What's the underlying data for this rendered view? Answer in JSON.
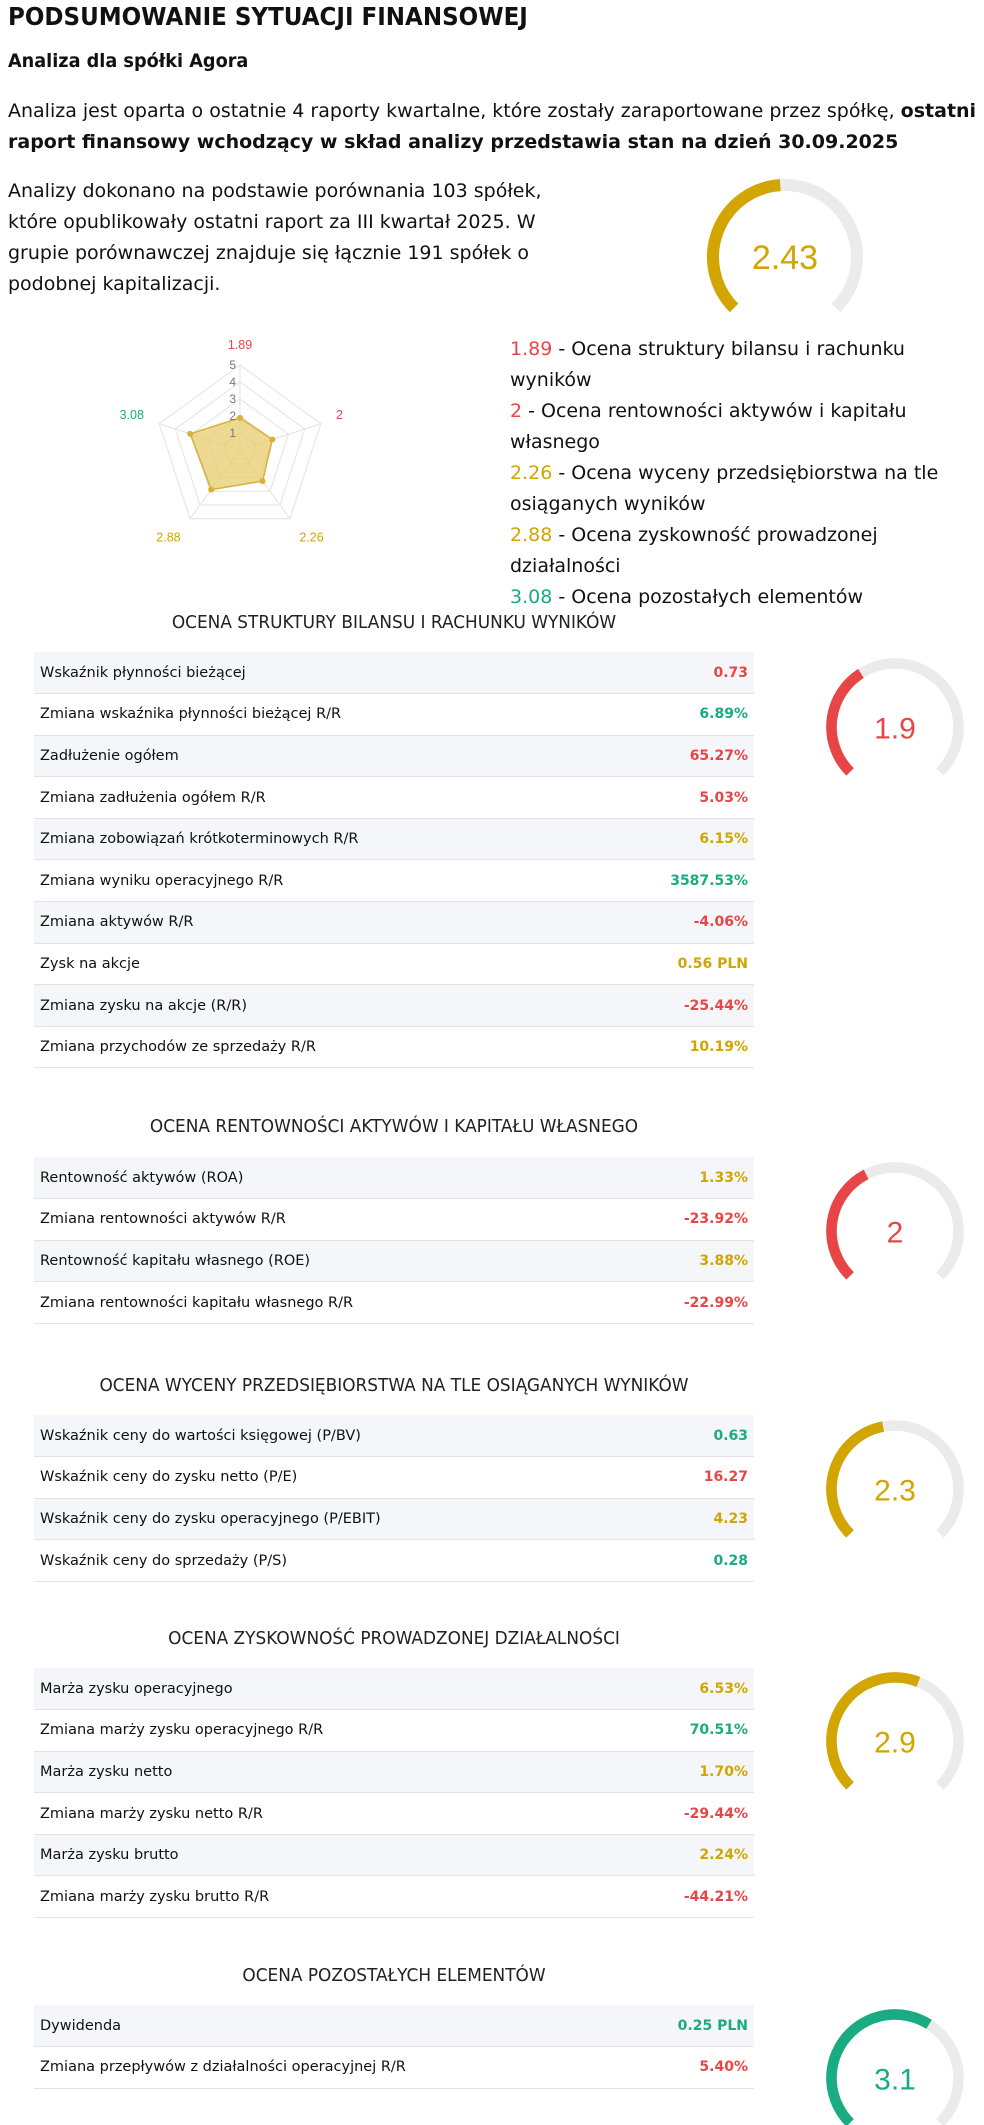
{
  "header": {
    "title": "PODSUMOWANIE SYTUACJI FINANSOWEJ",
    "subtitle": "Analiza dla spółki Agora",
    "intro_text": "Analiza jest oparta o ostatnie 4 raporty kwartalne, które zostały zaraportowane przez spółkę, ",
    "intro_bold": "ostatni raport finansowy wchodzący w skład analizy przedstawia stan na dzień 30.09.2025",
    "description": "Analizy dokonano na podstawie porównania 103 spółek, które opublikowały ostatni raport za III kwartał 2025. W grupie porównawczej znajduje się łącznie 191 spółek o podobnej kapitalizacji."
  },
  "overall": {
    "score": "2.43",
    "value": 2.43,
    "max": 5,
    "color": "#d2a500"
  },
  "colors": {
    "red": "#e84646",
    "green": "#1aab83",
    "gold": "#d2a500",
    "track": "#ebebeb"
  },
  "chart_data": {
    "type": "radar",
    "axes": [
      "Ocena struktury bilansu i rachunku wyników",
      "Ocena rentowności aktywów i kapitału własnego",
      "Ocena wyceny przedsiębiorstwa na tle osiąganych wyników",
      "Ocena zyskowność prowadzonej działalności",
      "Ocena pozostałych elementów"
    ],
    "values": [
      1.89,
      2,
      2.26,
      2.88,
      3.08
    ],
    "value_labels": [
      "1.89",
      "2",
      "2.26",
      "2.88",
      "3.08"
    ],
    "label_colors": [
      "#e84646",
      "#e84646",
      "#d2a500",
      "#d2a500",
      "#1aab83"
    ],
    "ticks": [
      "1",
      "2",
      "3",
      "4",
      "5"
    ],
    "rmax": 5,
    "fill": "#e8cc6e",
    "stroke": "#d9b13a"
  },
  "legend": [
    {
      "value": "1.89",
      "label": " - Ocena struktury bilansu i rachunku wyników",
      "color": "#e84646"
    },
    {
      "value": "2",
      "label": " - Ocena rentowności aktywów i kapitału własnego",
      "color": "#e84646"
    },
    {
      "value": "2.26",
      "label": " - Ocena wyceny przedsiębiorstwa na tle osiąganych wyników",
      "color": "#d2a500"
    },
    {
      "value": "2.88",
      "label": " - Ocena zyskowność prowadzonej działalności",
      "color": "#d2a500"
    },
    {
      "value": "3.08",
      "label": " - Ocena pozostałych elementów",
      "color": "#1aab83"
    }
  ],
  "sections": [
    {
      "title": "OCENA STRUKTURY BILANSU I RACHUNKU WYNIKÓW",
      "score": "1.9",
      "score_value": 1.9,
      "score_color": "#e84646",
      "rows": [
        {
          "label": "Wskaźnik płynności bieżącej",
          "value": "0.73",
          "color": "red"
        },
        {
          "label": "Zmiana wskaźnika płynności bieżącej R/R",
          "value": "6.89%",
          "color": "green"
        },
        {
          "label": "Zadłużenie ogółem",
          "value": "65.27%",
          "color": "red"
        },
        {
          "label": "Zmiana zadłużenia ogółem R/R",
          "value": "5.03%",
          "color": "red"
        },
        {
          "label": "Zmiana zobowiązań krótkoterminowych R/R",
          "value": "6.15%",
          "color": "gold"
        },
        {
          "label": "Zmiana wyniku operacyjnego R/R",
          "value": "3587.53%",
          "color": "green"
        },
        {
          "label": "Zmiana aktywów R/R",
          "value": "-4.06%",
          "color": "red"
        },
        {
          "label": "Zysk na akcje",
          "value": "0.56 PLN",
          "color": "gold"
        },
        {
          "label": "Zmiana zysku na akcje (R/R)",
          "value": "-25.44%",
          "color": "red"
        },
        {
          "label": "Zmiana przychodów ze sprzedaży R/R",
          "value": "10.19%",
          "color": "gold"
        }
      ]
    },
    {
      "title": "OCENA RENTOWNOŚCI AKTYWÓW I KAPITAŁU WŁASNEGO",
      "score": "2",
      "score_value": 2,
      "score_color": "#e84646",
      "rows": [
        {
          "label": "Rentowność aktywów (ROA)",
          "value": "1.33%",
          "color": "gold"
        },
        {
          "label": "Zmiana rentowności aktywów R/R",
          "value": "-23.92%",
          "color": "red"
        },
        {
          "label": "Rentowność kapitału własnego (ROE)",
          "value": "3.88%",
          "color": "gold"
        },
        {
          "label": "Zmiana rentowności kapitału własnego R/R",
          "value": "-22.99%",
          "color": "red"
        }
      ]
    },
    {
      "title": "OCENA WYCENY PRZEDSIĘBIORSTWA NA TLE OSIĄGANYCH WYNIKÓW",
      "score": "2.3",
      "score_value": 2.3,
      "score_color": "#d2a500",
      "rows": [
        {
          "label": "Wskaźnik ceny do wartości księgowej (P/BV)",
          "value": "0.63",
          "color": "green"
        },
        {
          "label": "Wskaźnik ceny do zysku netto (P/E)",
          "value": "16.27",
          "color": "red"
        },
        {
          "label": "Wskaźnik ceny do zysku operacyjnego (P/EBIT)",
          "value": "4.23",
          "color": "gold"
        },
        {
          "label": "Wskaźnik ceny do sprzedaży (P/S)",
          "value": "0.28",
          "color": "green"
        }
      ]
    },
    {
      "title": "OCENA ZYSKOWNOŚĆ PROWADZONEJ DZIAŁALNOŚCI",
      "score": "2.9",
      "score_value": 2.9,
      "score_color": "#d2a500",
      "rows": [
        {
          "label": "Marża zysku operacyjnego",
          "value": "6.53%",
          "color": "gold"
        },
        {
          "label": "Zmiana marży zysku operacyjnego R/R",
          "value": "70.51%",
          "color": "green"
        },
        {
          "label": "Marża zysku netto",
          "value": "1.70%",
          "color": "gold"
        },
        {
          "label": "Zmiana marży zysku netto R/R",
          "value": "-29.44%",
          "color": "red"
        },
        {
          "label": "Marża zysku brutto",
          "value": "2.24%",
          "color": "gold"
        },
        {
          "label": "Zmiana marży zysku brutto R/R",
          "value": "-44.21%",
          "color": "red"
        }
      ]
    },
    {
      "title": "OCENA POZOSTAŁYCH ELEMENTÓW",
      "score": "3.1",
      "score_value": 3.1,
      "score_color": "#1aab83",
      "rows": [
        {
          "label": "Dywidenda",
          "value": "0.25 PLN",
          "color": "green"
        },
        {
          "label": "Zmiana przepływów z działalności operacyjnej R/R",
          "value": "5.40%",
          "color": "red"
        }
      ]
    }
  ]
}
